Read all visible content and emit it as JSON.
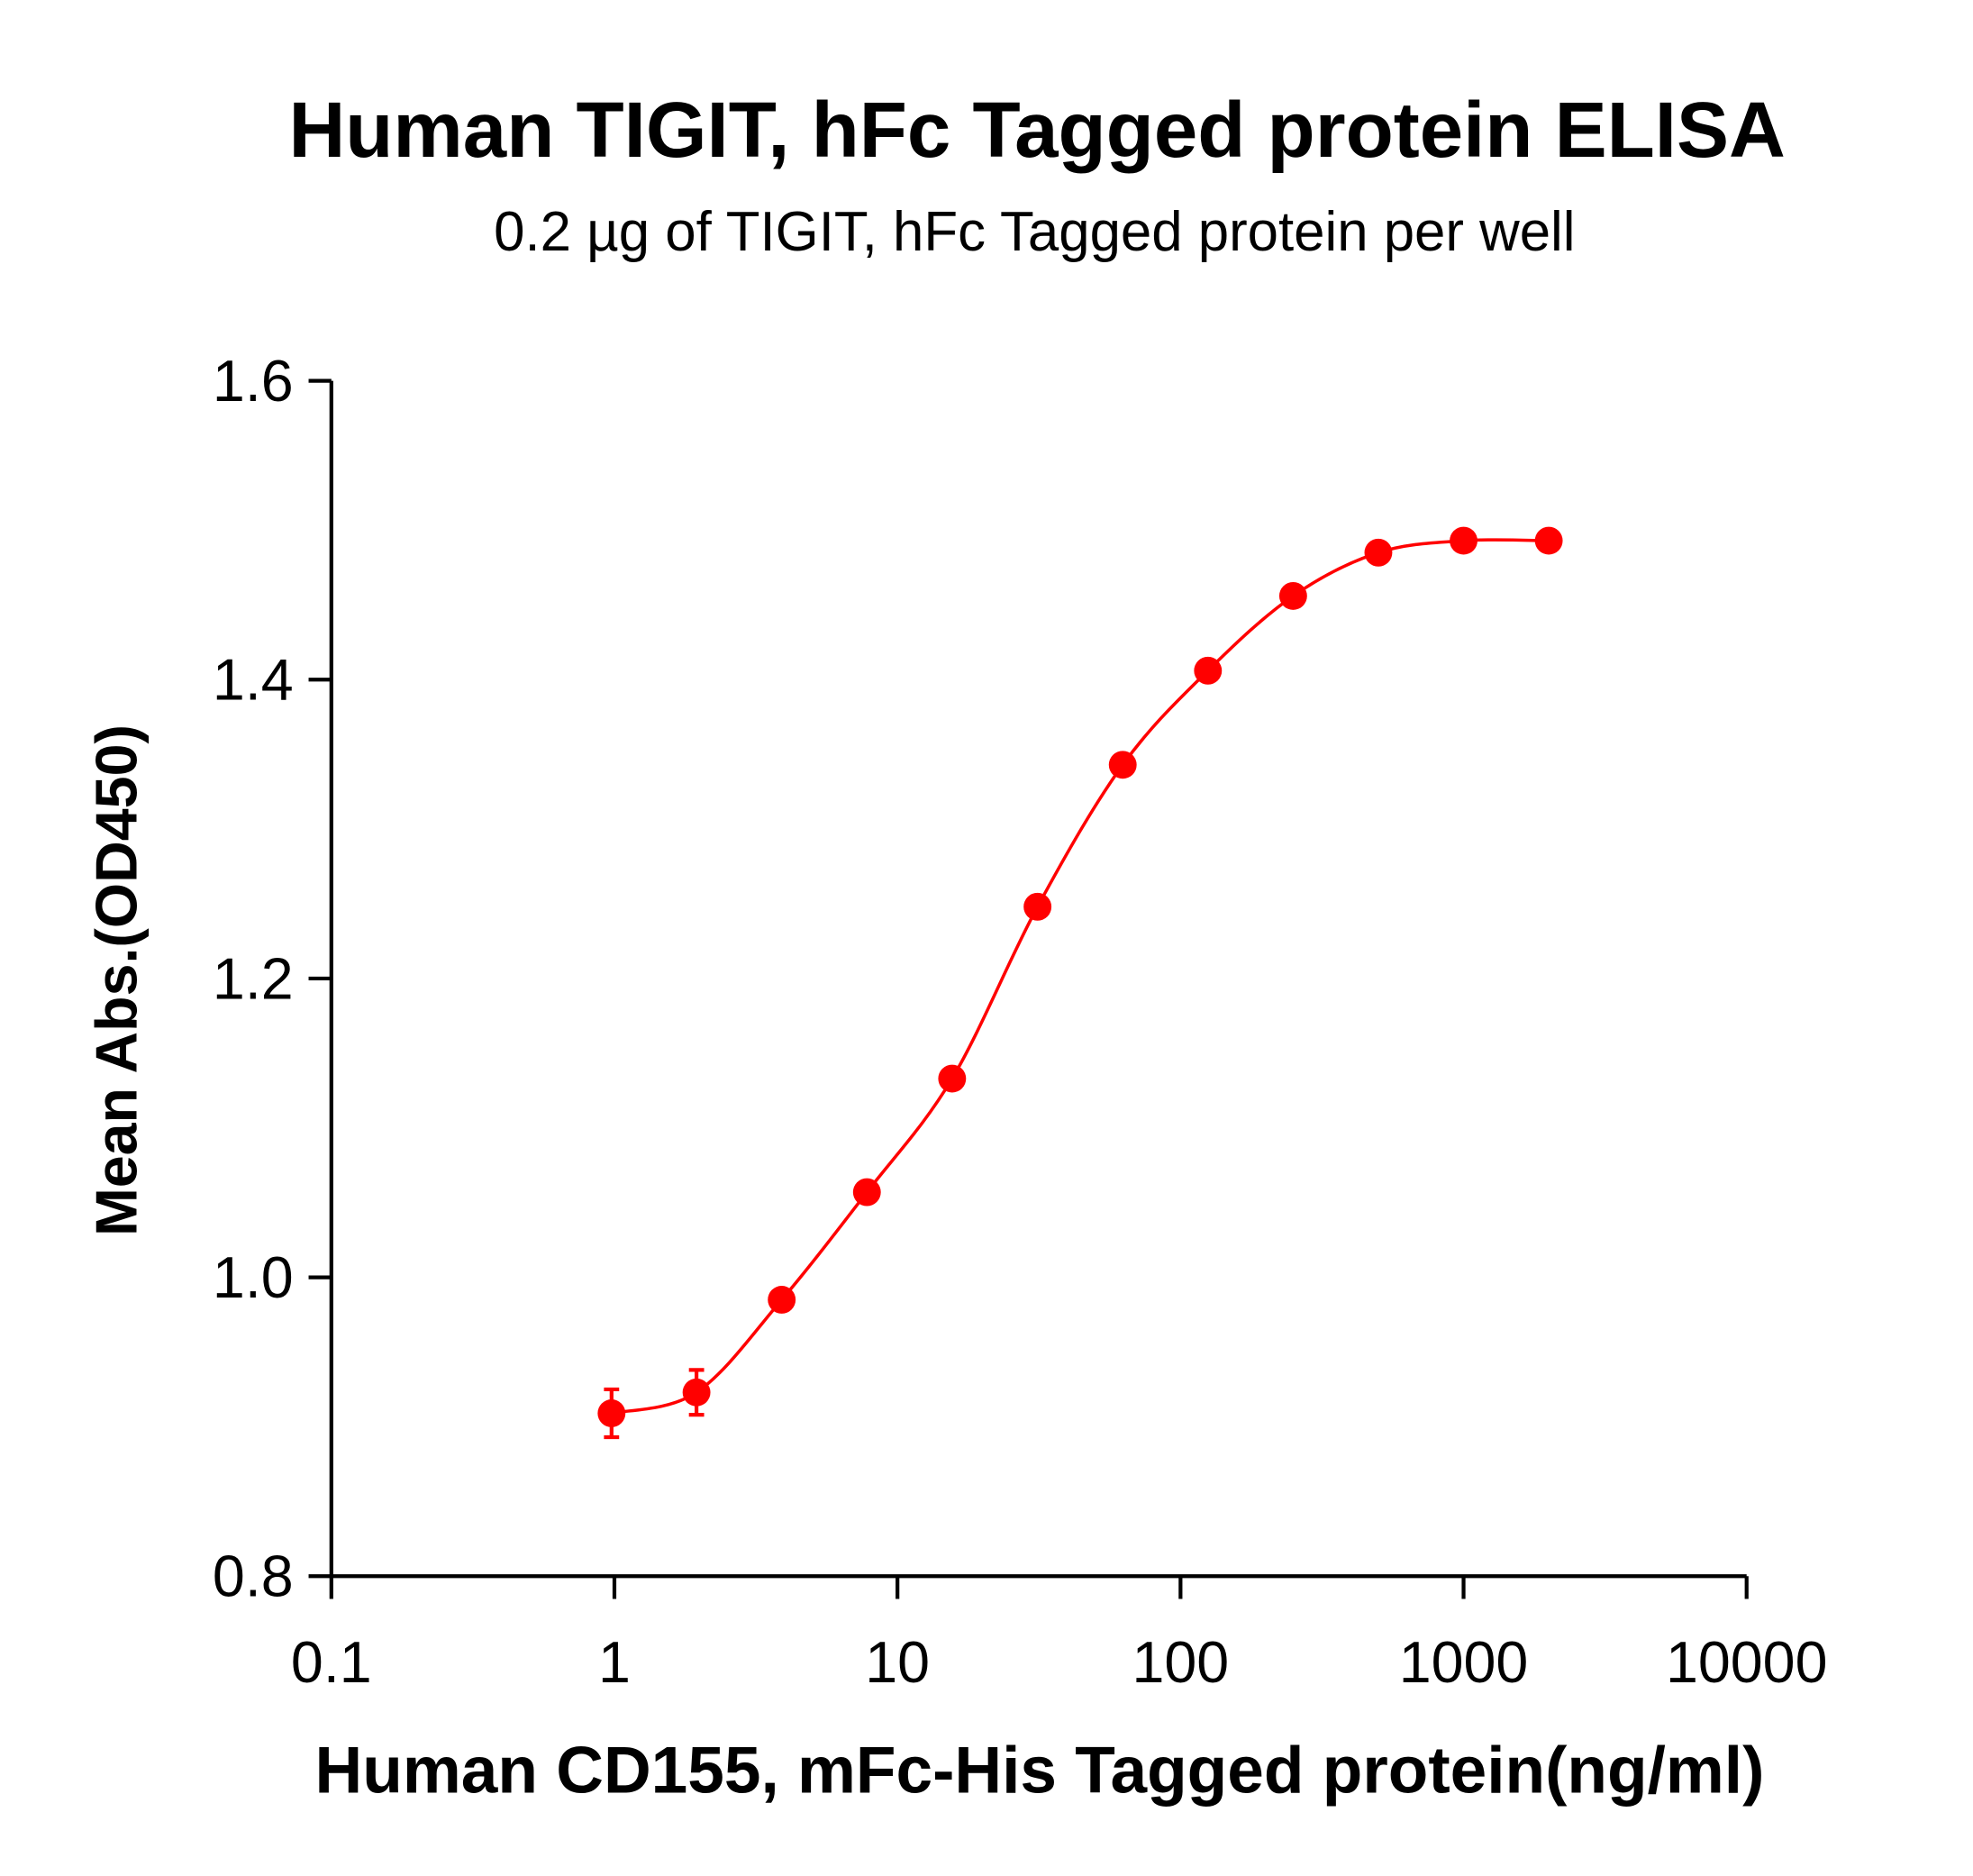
{
  "chart_data": {
    "type": "scatter",
    "title": "Human TIGIT, hFc Tagged protein ELISA",
    "subtitle": "0.2 µg of TIGIT, hFc Tagged protein per well",
    "xlabel": "Human CD155, mFc-His Tagged protein(ng/ml)",
    "ylabel": "Mean Abs.(OD450)",
    "xscale": "log",
    "xlim": [
      0.1,
      10000
    ],
    "ylim": [
      0.8,
      1.6
    ],
    "xticks": [
      "0.1",
      "1",
      "10",
      "100",
      "1000",
      "10000"
    ],
    "yticks": [
      "0.8",
      "1.0",
      "1.2",
      "1.4",
      "1.6"
    ],
    "grid": false,
    "color": "#ff0000",
    "fit_curve": true,
    "series": [
      {
        "x": [
          0.977,
          1.95,
          3.9,
          7.8,
          15.6,
          31.25,
          62.5,
          125,
          250,
          500,
          1000,
          2000
        ],
        "y": [
          0.909,
          0.923,
          0.985,
          1.057,
          1.133,
          1.248,
          1.343,
          1.406,
          1.456,
          1.485,
          1.493,
          1.493
        ],
        "error": [
          0.016,
          0.015,
          0.004,
          0.004,
          0.004,
          0.004,
          0.004,
          0.004,
          0.004,
          0.004,
          0.004,
          0.004
        ]
      }
    ]
  }
}
